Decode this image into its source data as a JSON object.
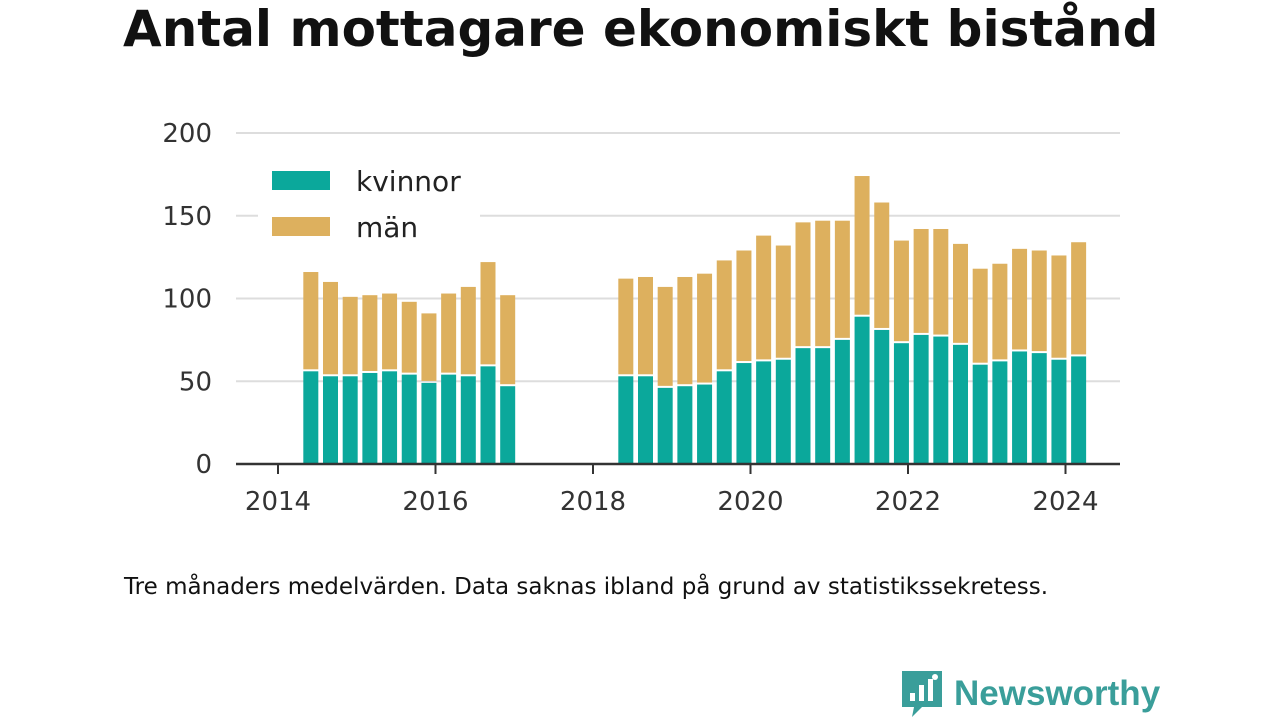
{
  "title": "Antal mottagare ekonomiskt bistånd",
  "caption": "Tre månaders medelvärden. Data saknas ibland på grund av statistikssekretess.",
  "brand": {
    "name": "Newsworthy",
    "icon": "newsworthy-logo-icon",
    "color": "#3a9e9a"
  },
  "colors": {
    "kvinnor": "#0ba89b",
    "man": "#ddb05e",
    "grid": "#dddddd",
    "axis": "#333333",
    "text": "#333333"
  },
  "chart_data": {
    "type": "bar",
    "stacked": true,
    "x_axis_ticks": [
      "2014",
      "2016",
      "2018",
      "2020",
      "2022",
      "2024"
    ],
    "y_axis_ticks": [
      "0",
      "50",
      "100",
      "150",
      "200"
    ],
    "ylim": [
      0,
      200
    ],
    "grid": true,
    "legend_position": "top-left",
    "x": [
      "2014-06",
      "2014-09",
      "2014-12",
      "2015-03",
      "2015-06",
      "2015-09",
      "2015-12",
      "2016-03",
      "2016-06",
      "2016-09",
      "2016-12",
      "2018-06",
      "2018-09",
      "2018-12",
      "2019-03",
      "2019-06",
      "2019-09",
      "2019-12",
      "2020-03",
      "2020-06",
      "2020-09",
      "2020-12",
      "2021-03",
      "2021-06",
      "2021-09",
      "2021-12",
      "2022-03",
      "2022-06",
      "2022-09",
      "2022-12",
      "2023-03",
      "2023-06",
      "2023-09",
      "2023-12",
      "2024-03"
    ],
    "series": [
      {
        "name": "kvinnor",
        "values": [
          56,
          53,
          53,
          55,
          56,
          54,
          49,
          54,
          53,
          59,
          47,
          53,
          53,
          46,
          47,
          48,
          56,
          61,
          62,
          63,
          70,
          70,
          75,
          89,
          81,
          73,
          78,
          77,
          72,
          60,
          62,
          68,
          67,
          63,
          65
        ]
      },
      {
        "name": "män",
        "values": [
          60,
          57,
          48,
          47,
          47,
          44,
          42,
          49,
          54,
          63,
          55,
          59,
          60,
          61,
          66,
          67,
          67,
          68,
          76,
          69,
          76,
          77,
          72,
          85,
          77,
          62,
          64,
          65,
          61,
          58,
          59,
          62,
          62,
          63,
          69
        ]
      }
    ]
  }
}
